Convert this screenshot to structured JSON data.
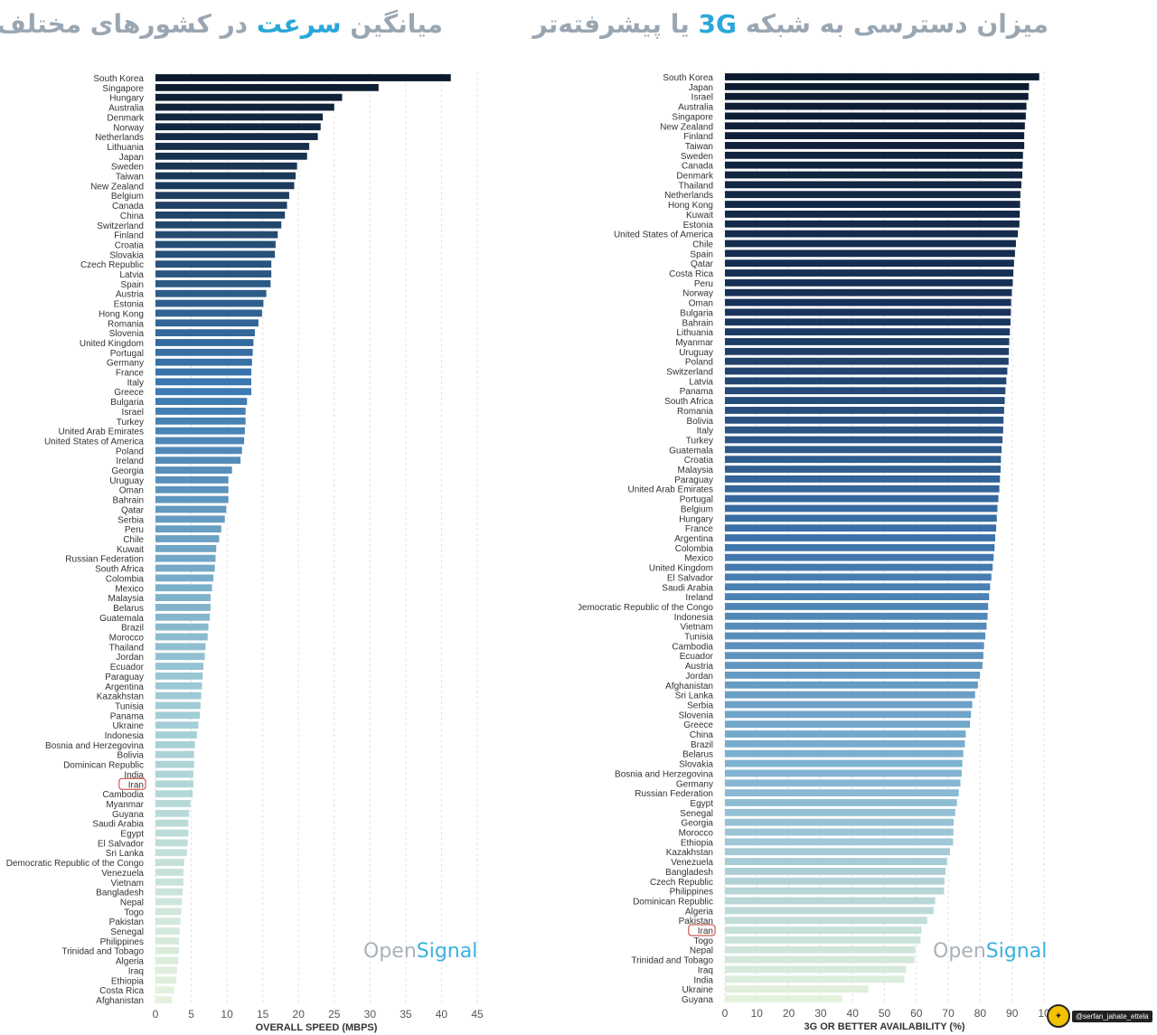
{
  "titles": {
    "left": {
      "pre": "میانگین ",
      "hl": "سرعت",
      "post": " در کشورهای مختلف"
    },
    "right": {
      "pre": "میزان دسترسی به شبکه ",
      "hl": "3G",
      "post": " یا پیشرفته‌تر"
    }
  },
  "watermark": {
    "open": "Open",
    "signal": "Signal"
  },
  "handle": {
    "text": "@serfan_jahate_ettela"
  },
  "chart_data": [
    {
      "type": "bar",
      "orientation": "horizontal",
      "xlabel": "OVERALL SPEED (MBPS)",
      "xlim": [
        0,
        45
      ],
      "xticks": [
        "0",
        "5",
        "10",
        "15",
        "20",
        "25",
        "30",
        "35",
        "40",
        "45"
      ],
      "grid": true,
      "highlight": "Iran",
      "color_gradient": [
        "#0b1a2e",
        "#3b78b0",
        "#9ccad6",
        "#e4f2dc"
      ],
      "categories": [
        "South Korea",
        "Singapore",
        "Hungary",
        "Australia",
        "Denmark",
        "Norway",
        "Netherlands",
        "Lithuania",
        "Japan",
        "Sweden",
        "Taiwan",
        "New Zealand",
        "Belgium",
        "Canada",
        "China",
        "Switzerland",
        "Finland",
        "Croatia",
        "Slovakia",
        "Czech Republic",
        "Latvia",
        "Spain",
        "Austria",
        "Estonia",
        "Hong Kong",
        "Romania",
        "Slovenia",
        "United Kingdom",
        "Portugal",
        "Germany",
        "France",
        "Italy",
        "Greece",
        "Bulgaria",
        "Israel",
        "Turkey",
        "United Arab Emirates",
        "United States of America",
        "Poland",
        "Ireland",
        "Georgia",
        "Uruguay",
        "Oman",
        "Bahrain",
        "Qatar",
        "Serbia",
        "Peru",
        "Chile",
        "Kuwait",
        "Russian Federation",
        "South Africa",
        "Colombia",
        "Mexico",
        "Malaysia",
        "Belarus",
        "Guatemala",
        "Brazil",
        "Morocco",
        "Thailand",
        "Jordan",
        "Ecuador",
        "Paraguay",
        "Argentina",
        "Kazakhstan",
        "Tunisia",
        "Panama",
        "Ukraine",
        "Indonesia",
        "Bosnia and Herzegovina",
        "Bolivia",
        "Dominican Republic",
        "India",
        "Iran",
        "Cambodia",
        "Myanmar",
        "Guyana",
        "Saudi Arabia",
        "Egypt",
        "El Salvador",
        "Sri Lanka",
        "Democratic Republic of the Congo",
        "Venezuela",
        "Vietnam",
        "Bangladesh",
        "Nepal",
        "Togo",
        "Pakistan",
        "Senegal",
        "Philippines",
        "Trinidad and Tobago",
        "Algeria",
        "Iraq",
        "Ethiopia",
        "Costa Rica",
        "Afghanistan"
      ],
      "values": [
        41.3,
        31.2,
        26.1,
        25,
        23.4,
        23.1,
        22.7,
        21.5,
        21.2,
        19.8,
        19.6,
        19.4,
        18.7,
        18.4,
        18.1,
        17.6,
        17.1,
        16.8,
        16.7,
        16.2,
        16.2,
        16.1,
        15.5,
        15.1,
        14.9,
        14.4,
        13.9,
        13.7,
        13.6,
        13.5,
        13.4,
        13.4,
        13.4,
        12.8,
        12.6,
        12.6,
        12.5,
        12.4,
        12.1,
        11.9,
        10.7,
        10.2,
        10.2,
        10.2,
        9.9,
        9.7,
        9.2,
        8.9,
        8.5,
        8.4,
        8.3,
        8.1,
        7.9,
        7.7,
        7.7,
        7.6,
        7.4,
        7.3,
        7,
        6.9,
        6.7,
        6.6,
        6.5,
        6.4,
        6.3,
        6.2,
        6,
        5.8,
        5.5,
        5.4,
        5.4,
        5.3,
        5.3,
        5.2,
        4.9,
        4.7,
        4.6,
        4.6,
        4.5,
        4.4,
        4,
        3.9,
        3.9,
        3.8,
        3.7,
        3.6,
        3.5,
        3.4,
        3.3,
        3.3,
        3.2,
        3,
        2.9,
        2.6,
        2.3
      ]
    },
    {
      "type": "bar",
      "orientation": "horizontal",
      "xlabel": "3G OR BETTER AVAILABILITY (%)",
      "xlim": [
        0,
        100
      ],
      "xticks": [
        "0",
        "10",
        "20",
        "30",
        "40",
        "50",
        "60",
        "70",
        "80",
        "90",
        "10"
      ],
      "grid": true,
      "highlight": "Iran",
      "color_gradient": [
        "#0b1a2e",
        "#18335a",
        "#3b72aa",
        "#7fb3d2",
        "#e4f2dc"
      ],
      "categories": [
        "South Korea",
        "Japan",
        "Israel",
        "Australia",
        "Singapore",
        "New Zealand",
        "Finland",
        "Taiwan",
        "Sweden",
        "Canada",
        "Denmark",
        "Thailand",
        "Netherlands",
        "Hong Kong",
        "Kuwait",
        "Estonia",
        "United States of America",
        "Chile",
        "Spain",
        "Qatar",
        "Costa Rica",
        "Peru",
        "Norway",
        "Oman",
        "Bulgaria",
        "Bahrain",
        "Lithuania",
        "Myanmar",
        "Uruguay",
        "Poland",
        "Switzerland",
        "Latvia",
        "Panama",
        "South Africa",
        "Romania",
        "Bolivia",
        "Italy",
        "Turkey",
        "Guatemala",
        "Croatia",
        "Malaysia",
        "Paraguay",
        "United Arab Emirates",
        "Portugal",
        "Belgium",
        "Hungary",
        "France",
        "Argentina",
        "Colombia",
        "Mexico",
        "United Kingdom",
        "El Salvador",
        "Saudi Arabia",
        "Ireland",
        "Democratic Republic of the Congo",
        "Indonesia",
        "Vietnam",
        "Tunisia",
        "Cambodia",
        "Ecuador",
        "Austria",
        "Jordan",
        "Afghanistan",
        "Sri Lanka",
        "Serbia",
        "Slovenia",
        "Greece",
        "China",
        "Brazil",
        "Belarus",
        "Slovakia",
        "Bosnia and Herzegovina",
        "Germany",
        "Russian Federation",
        "Egypt",
        "Senegal",
        "Georgia",
        "Morocco",
        "Ethiopia",
        "Kazakhstan",
        "Venezuela",
        "Bangladesh",
        "Czech Republic",
        "Philippines",
        "Dominican Republic",
        "Algeria",
        "Pakistan",
        "Iran",
        "Togo",
        "Nepal",
        "Trinidad and Tobago",
        "Iraq",
        "India",
        "Ukraine",
        "Guyana"
      ],
      "values": [
        98.5,
        95.3,
        95.1,
        94.5,
        94.3,
        94,
        93.8,
        93.8,
        93.4,
        93.3,
        93.2,
        92.9,
        92.6,
        92.5,
        92.4,
        92.3,
        91.8,
        91.2,
        90.9,
        90.6,
        90.4,
        90.2,
        89.9,
        89.7,
        89.6,
        89.5,
        89.3,
        89.1,
        89,
        88.9,
        88.5,
        88.2,
        87.9,
        87.7,
        87.5,
        87.3,
        87.2,
        87,
        86.7,
        86.5,
        86.4,
        86.2,
        86,
        85.7,
        85.4,
        85.2,
        85,
        84.7,
        84.5,
        84.2,
        83.9,
        83.5,
        83.1,
        82.8,
        82.5,
        82.3,
        82,
        81.6,
        81.2,
        81,
        80.7,
        79.9,
        79.3,
        78.4,
        77.5,
        77.1,
        76.8,
        75.5,
        75.2,
        74.7,
        74.4,
        74.2,
        73.8,
        73.3,
        72.7,
        72.2,
        71.7,
        71.6,
        71.5,
        70.5,
        69.6,
        69.1,
        68.8,
        68.7,
        65.9,
        65.4,
        63.4,
        61.6,
        61.3,
        59.7,
        59.4,
        56.8,
        56.2,
        45,
        36.7
      ]
    }
  ]
}
